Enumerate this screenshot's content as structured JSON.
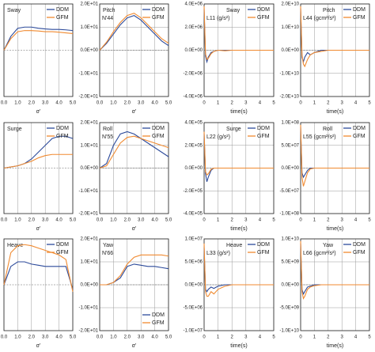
{
  "chart_data": [
    {
      "type": "line",
      "label": "Sway",
      "xlabel": "σ'",
      "legend": "upper right",
      "grid": true,
      "x": [
        0,
        0.5,
        1,
        1.5,
        2,
        2.5,
        3,
        3.5,
        4,
        4.5,
        5
      ],
      "xlim": [
        0,
        5
      ],
      "xticks": [
        {
          "value": 0,
          "label": "0.0"
        },
        {
          "value": 1,
          "label": "1.0"
        },
        {
          "value": 2,
          "label": "2.0"
        },
        {
          "value": 3,
          "label": "3.0"
        },
        {
          "value": 4,
          "label": "4.0"
        },
        {
          "value": 5,
          "label": "5.0"
        }
      ],
      "ylim": [
        -2,
        2
      ],
      "series": [
        {
          "name": "DDM",
          "color": "#2c4a9a",
          "values": [
            0,
            0.6,
            0.95,
            1.0,
            1.0,
            0.95,
            0.92,
            0.9,
            0.9,
            0.88,
            0.85
          ]
        },
        {
          "name": "GFM",
          "color": "#f08a30",
          "values": [
            0,
            0.5,
            0.8,
            0.85,
            0.85,
            0.83,
            0.8,
            0.8,
            0.78,
            0.75,
            0.72
          ]
        }
      ]
    },
    {
      "type": "line",
      "label": "Pitch",
      "ylabel": "N'44",
      "xlabel": "σ'",
      "legend": "upper right",
      "grid": true,
      "x": [
        0,
        0.5,
        1,
        1.5,
        2,
        2.5,
        3,
        3.5,
        4,
        4.5,
        5
      ],
      "xlim": [
        0,
        5
      ],
      "xticks": [
        {
          "value": 0,
          "label": "0.0"
        },
        {
          "value": 1,
          "label": "1.0"
        },
        {
          "value": 2,
          "label": "2.0"
        },
        {
          "value": 3,
          "label": "3.0"
        },
        {
          "value": 4,
          "label": "4.0"
        },
        {
          "value": 5,
          "label": "5.0"
        }
      ],
      "ylim": [
        -20,
        20
      ],
      "yticks": [
        {
          "value": -20,
          "label": "-2.0E+01"
        },
        {
          "value": -10,
          "label": "-1.0E+01"
        },
        {
          "value": 0,
          "label": "0.0E+00"
        },
        {
          "value": 10,
          "label": "1.0E+01"
        },
        {
          "value": 20,
          "label": "2.0E+01"
        }
      ],
      "series": [
        {
          "name": "DDM",
          "color": "#2c4a9a",
          "values": [
            0,
            3,
            7,
            11,
            14,
            15,
            13,
            10,
            7,
            4,
            2
          ]
        },
        {
          "name": "GFM",
          "color": "#f08a30",
          "values": [
            0,
            3.5,
            8,
            12,
            15,
            16,
            14,
            11,
            8,
            5,
            3
          ]
        }
      ]
    },
    {
      "type": "line",
      "label": "Sway",
      "ylabel": "L11 (g/s²)",
      "xlabel": "time(s)",
      "legend": "upper right",
      "grid": true,
      "x": [
        0,
        0.1,
        0.2,
        0.3,
        0.5,
        0.7,
        1,
        1.5,
        2,
        3,
        4,
        5
      ],
      "xlim": [
        0,
        5
      ],
      "xticks": [
        0,
        1,
        2,
        3,
        4,
        5
      ],
      "ylim": [
        -4000000,
        4000000
      ],
      "yticks": [
        {
          "value": -4000000,
          "label": "-4.0E+06"
        },
        {
          "value": -2000000,
          "label": "-2.0E+06"
        },
        {
          "value": 0,
          "label": "0.0E+00"
        },
        {
          "value": 2000000,
          "label": "2.0E+06"
        },
        {
          "value": 4000000,
          "label": "4.0E+06"
        }
      ],
      "series": [
        {
          "name": "DDM",
          "color": "#2c4a9a",
          "values": [
            3500000,
            -500000,
            -1000000,
            -600000,
            -200000,
            -100000,
            0,
            0,
            0,
            0,
            0,
            0
          ]
        },
        {
          "name": "GFM",
          "color": "#f08a30",
          "values": [
            3800000,
            -300000,
            -800000,
            -700000,
            -300000,
            -100000,
            0,
            -50000,
            0,
            0,
            0,
            0
          ]
        }
      ]
    },
    {
      "type": "line",
      "label": "Pitch",
      "ylabel": "L44 (gcm²/s²)",
      "xlabel": "time(s)",
      "legend": "upper right",
      "grid": true,
      "x": [
        0,
        0.1,
        0.2,
        0.3,
        0.5,
        0.7,
        1,
        1.5,
        2,
        3,
        4,
        5
      ],
      "xlim": [
        0,
        5
      ],
      "xticks": [
        0,
        1,
        2,
        3,
        4,
        5
      ],
      "ylim": [
        -20000000000,
        20000000000
      ],
      "yticks": [
        {
          "value": -20000000000,
          "label": "-2.0E+10"
        },
        {
          "value": -10000000000,
          "label": "-1.0E+10"
        },
        {
          "value": 0,
          "label": "0.0E+00"
        },
        {
          "value": 10000000000,
          "label": "1.0E+10"
        },
        {
          "value": 20000000000,
          "label": "2.0E+10"
        }
      ],
      "series": [
        {
          "name": "DDM",
          "color": "#2c4a9a",
          "values": [
            18000000000,
            -3000000000,
            -5000000000,
            -3000000000,
            -1000000000,
            -2000000000,
            -1000000000,
            0,
            0,
            0,
            0,
            0
          ]
        },
        {
          "name": "GFM",
          "color": "#f08a30",
          "values": [
            19000000000,
            -2000000000,
            -6000000000,
            -7000000000,
            -4000000000,
            -2000000000,
            -1000000000,
            -500000000,
            0,
            0,
            0,
            0
          ]
        }
      ]
    },
    {
      "type": "line",
      "label": "Surge",
      "xlabel": "σ'",
      "legend": "upper right",
      "grid": true,
      "x": [
        0,
        0.5,
        1,
        1.5,
        2,
        2.5,
        3,
        3.5,
        4,
        4.5,
        5
      ],
      "xlim": [
        0,
        5
      ],
      "xticks": [
        {
          "value": 0,
          "label": "0.0"
        },
        {
          "value": 1,
          "label": "1.0"
        },
        {
          "value": 2,
          "label": "2.0"
        },
        {
          "value": 3,
          "label": "3.0"
        },
        {
          "value": 4,
          "label": "4.0"
        },
        {
          "value": 5,
          "label": "5.0"
        }
      ],
      "ylim": [
        -2,
        2
      ],
      "series": [
        {
          "name": "DDM",
          "color": "#2c4a9a",
          "values": [
            0,
            0.05,
            0.1,
            0.2,
            0.4,
            0.7,
            1.0,
            1.3,
            1.4,
            1.4,
            1.3
          ]
        },
        {
          "name": "GFM",
          "color": "#f08a30",
          "values": [
            0,
            0.05,
            0.1,
            0.2,
            0.3,
            0.45,
            0.55,
            0.6,
            0.6,
            0.6,
            0.6
          ]
        }
      ]
    },
    {
      "type": "line",
      "label": "Roll",
      "ylabel": "N'55",
      "xlabel": "σ'",
      "legend": "upper right",
      "grid": true,
      "x": [
        0,
        0.5,
        1,
        1.5,
        2,
        2.5,
        3,
        3.5,
        4,
        4.5,
        5
      ],
      "xlim": [
        0,
        5
      ],
      "xticks": [
        {
          "value": 0,
          "label": "0.0"
        },
        {
          "value": 1,
          "label": "1.0"
        },
        {
          "value": 2,
          "label": "2.0"
        },
        {
          "value": 3,
          "label": "3.0"
        },
        {
          "value": 4,
          "label": "4.0"
        },
        {
          "value": 5,
          "label": "5.0"
        }
      ],
      "ylim": [
        -20,
        20
      ],
      "yticks": [
        {
          "value": -20,
          "label": "-2.0E+01"
        },
        {
          "value": -10,
          "label": "-1.0E+01"
        },
        {
          "value": 0,
          "label": "0.0E+00"
        },
        {
          "value": 10,
          "label": "1.0E+01"
        },
        {
          "value": 20,
          "label": "2.0E+01"
        }
      ],
      "series": [
        {
          "name": "DDM",
          "color": "#2c4a9a",
          "values": [
            0,
            2,
            10,
            15,
            16,
            15,
            13,
            11,
            9,
            7,
            5
          ]
        },
        {
          "name": "GFM",
          "color": "#f08a30",
          "values": [
            0,
            1,
            6,
            11,
            13.5,
            14,
            13,
            12,
            11,
            10,
            9
          ]
        }
      ]
    },
    {
      "type": "line",
      "label": "Surge",
      "ylabel": "L22 (g/s²)",
      "xlabel": "time(s)",
      "legend": "upper right",
      "grid": true,
      "x": [
        0,
        0.1,
        0.2,
        0.3,
        0.5,
        0.7,
        1,
        1.5,
        2,
        3,
        4,
        5
      ],
      "xlim": [
        0,
        5
      ],
      "xticks": [
        0,
        1,
        2,
        3,
        4,
        5
      ],
      "ylim": [
        -400000,
        400000
      ],
      "yticks": [
        {
          "value": -400000,
          "label": "-4.0E+05"
        },
        {
          "value": -200000,
          "label": "-2.0E+05"
        },
        {
          "value": 0,
          "label": "0.0E+00"
        },
        {
          "value": 200000,
          "label": "2.0E+05"
        },
        {
          "value": 400000,
          "label": "4.0E+05"
        }
      ],
      "series": [
        {
          "name": "DDM",
          "color": "#2c4a9a",
          "values": [
            300000,
            -50000,
            -120000,
            -80000,
            -20000,
            0,
            0,
            0,
            0,
            0,
            0,
            0
          ]
        },
        {
          "name": "GFM",
          "color": "#f08a30",
          "values": [
            320000,
            -30000,
            -60000,
            -50000,
            -10000,
            0,
            0,
            0,
            0,
            0,
            0,
            0
          ]
        }
      ]
    },
    {
      "type": "line",
      "label": "Roll",
      "ylabel": "L55 (gcm²/s²)",
      "xlabel": "time(s)",
      "legend": "upper right",
      "grid": true,
      "x": [
        0,
        0.1,
        0.2,
        0.3,
        0.5,
        0.7,
        1,
        1.5,
        2,
        3,
        4,
        5
      ],
      "xlim": [
        0,
        5
      ],
      "xticks": [
        0,
        1,
        2,
        3,
        4,
        5
      ],
      "ylim": [
        -100000000,
        100000000
      ],
      "yticks": [
        {
          "value": -100000000,
          "label": "-1.0E+08"
        },
        {
          "value": -50000000,
          "label": "-5.0E+07"
        },
        {
          "value": 0,
          "label": "0.0E+00"
        },
        {
          "value": 50000000,
          "label": "5.0E+07"
        },
        {
          "value": 100000000,
          "label": "1.0E+08"
        }
      ],
      "series": [
        {
          "name": "DDM",
          "color": "#2c4a9a",
          "values": [
            90000000,
            -10000000,
            -20000000,
            -15000000,
            -5000000,
            0,
            0,
            0,
            0,
            0,
            0,
            0
          ]
        },
        {
          "name": "GFM",
          "color": "#f08a30",
          "values": [
            95000000,
            -20000000,
            -40000000,
            -30000000,
            -10000000,
            -2000000,
            0,
            0,
            0,
            0,
            0,
            0
          ]
        }
      ]
    },
    {
      "type": "line",
      "label": "Heave",
      "xlabel": "σ'",
      "legend": "upper right",
      "grid": true,
      "x": [
        0,
        0.5,
        1,
        1.5,
        2,
        2.5,
        3,
        3.5,
        4,
        4.5,
        5
      ],
      "xlim": [
        0,
        5
      ],
      "xticks": [
        {
          "value": 0,
          "label": "0.0"
        },
        {
          "value": 1,
          "label": "1.0"
        },
        {
          "value": 2,
          "label": "2.0"
        },
        {
          "value": 3,
          "label": "3.0"
        },
        {
          "value": 4,
          "label": "4.0"
        },
        {
          "value": 5,
          "label": "5.0"
        }
      ],
      "ylim": [
        -2,
        2
      ],
      "series": [
        {
          "name": "DDM",
          "color": "#2c4a9a",
          "values": [
            0,
            0.8,
            1.0,
            1.0,
            0.9,
            0.85,
            0.8,
            0.8,
            0.8,
            0.8,
            -0.2
          ]
        },
        {
          "name": "GFM",
          "color": "#f08a30",
          "values": [
            0,
            1.4,
            1.7,
            1.75,
            1.7,
            1.6,
            1.5,
            1.4,
            1.3,
            1.1,
            -0.3
          ]
        }
      ]
    },
    {
      "type": "line",
      "label": "Yaw",
      "ylabel": "N'66",
      "xlabel": "σ'",
      "legend": "lower right",
      "grid": true,
      "x": [
        0,
        0.5,
        1,
        1.5,
        2,
        2.5,
        3,
        3.5,
        4,
        4.5,
        5
      ],
      "xlim": [
        0,
        5
      ],
      "xticks": [
        {
          "value": 0,
          "label": "0.0"
        },
        {
          "value": 1,
          "label": "1.0"
        },
        {
          "value": 2,
          "label": "2.0"
        },
        {
          "value": 3,
          "label": "3.0"
        },
        {
          "value": 4,
          "label": "4.0"
        },
        {
          "value": 5,
          "label": "5.0"
        }
      ],
      "ylim": [
        -20,
        20
      ],
      "yticks": [
        {
          "value": -20,
          "label": "-2.0E+01"
        },
        {
          "value": -10,
          "label": "-1.0E+01"
        },
        {
          "value": 0,
          "label": "0.0E+00"
        },
        {
          "value": 10,
          "label": "1.0E+01"
        },
        {
          "value": 20,
          "label": "2.0E+01"
        }
      ],
      "series": [
        {
          "name": "DDM",
          "color": "#2c4a9a",
          "values": [
            0,
            0,
            1,
            3,
            8,
            9,
            8.5,
            8,
            8,
            7.5,
            7
          ]
        },
        {
          "name": "GFM",
          "color": "#f08a30",
          "values": [
            0,
            0,
            1,
            4,
            9,
            12,
            13,
            13,
            13,
            13,
            12.5
          ]
        }
      ]
    },
    {
      "type": "line",
      "label": "Heave",
      "ylabel": "L33 (g/s²)",
      "xlabel": "time(s)",
      "legend": "upper right",
      "grid": true,
      "x": [
        0,
        0.1,
        0.2,
        0.3,
        0.5,
        0.7,
        1,
        1.5,
        2,
        3,
        4,
        5
      ],
      "xlim": [
        0,
        5
      ],
      "xticks": [
        0,
        1,
        2,
        3,
        4,
        5
      ],
      "ylim": [
        -10000000,
        10000000
      ],
      "yticks": [
        {
          "value": -10000000,
          "label": "-1.0E+07"
        },
        {
          "value": -5000000,
          "label": "-5.0E+06"
        },
        {
          "value": 0,
          "label": "0.0E+00"
        },
        {
          "value": 5000000,
          "label": "5.0E+06"
        },
        {
          "value": 10000000,
          "label": "1.0E+07"
        }
      ],
      "series": [
        {
          "name": "DDM",
          "color": "#2c4a9a",
          "values": [
            8000000,
            -1000000,
            -1500000,
            -1000000,
            -500000,
            -800000,
            -300000,
            0,
            0,
            0,
            0,
            0
          ]
        },
        {
          "name": "GFM",
          "color": "#f08a30",
          "values": [
            9000000,
            -1500000,
            -2500000,
            -2500000,
            -1500000,
            -2000000,
            -1000000,
            -300000,
            0,
            0,
            0,
            0
          ]
        }
      ]
    },
    {
      "type": "line",
      "label": "Yaw",
      "ylabel": "L66 (gcm²/s²)",
      "xlabel": "time(s)",
      "legend": "upper right",
      "grid": true,
      "x": [
        0,
        0.1,
        0.2,
        0.3,
        0.5,
        0.7,
        1,
        1.5,
        2,
        3,
        4,
        5
      ],
      "xlim": [
        0,
        5
      ],
      "xticks": [
        0,
        1,
        2,
        3,
        4,
        5
      ],
      "ylim": [
        -10000000000,
        10000000000
      ],
      "yticks": [
        {
          "value": -10000000000,
          "label": "-1.0E+10"
        },
        {
          "value": -5000000000,
          "label": "-5.0E+09"
        },
        {
          "value": 0,
          "label": "0.0E+00"
        },
        {
          "value": 5000000000,
          "label": "5.0E+09"
        },
        {
          "value": 10000000000,
          "label": "1.0E+10"
        }
      ],
      "series": [
        {
          "name": "DDM",
          "color": "#2c4a9a",
          "values": [
            9000000000,
            -1000000000,
            -2000000000,
            -1500000000,
            -500000000,
            -300000000,
            0,
            0,
            0,
            0,
            0,
            0
          ]
        },
        {
          "name": "GFM",
          "color": "#f08a30",
          "values": [
            9500000000,
            -1500000000,
            -3000000000,
            -2500000000,
            -1000000000,
            -500000000,
            -200000000,
            0,
            0,
            0,
            0,
            0
          ]
        }
      ]
    }
  ]
}
